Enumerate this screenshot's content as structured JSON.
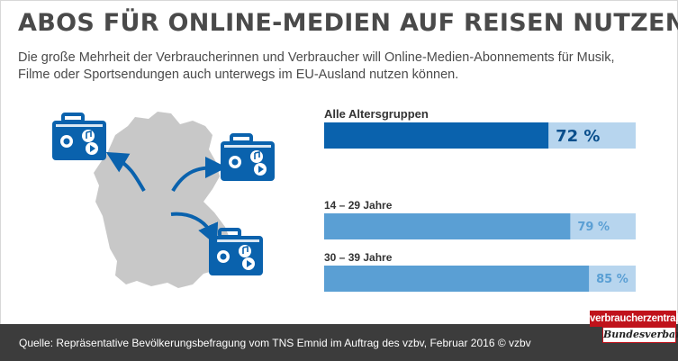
{
  "title": "ABOS FÜR ONLINE-MEDIEN AUF REISEN NUTZEN",
  "subtitle": "Die große Mehrheit der Verbraucherinnen und Verbraucher will Online-Medien-Abonnements für Musik, Filme oder Sportsendungen auch unterwegs im EU-Ausland nutzen können.",
  "source": "Quelle: Repräsentative Bevölkerungsbefragung vom TNS Emnid im Auftrag des vzbv, Februar 2016 © vzbv",
  "logo": {
    "top": "verbraucherzentrale",
    "bottom": "Bundesverband"
  },
  "colors": {
    "dark_blue": "#0a62ad",
    "mid_blue": "#5a9fd4",
    "light_blue": "#b7d5ee",
    "map_gray": "#c8c8c8",
    "footer": "#3c3c3c",
    "brand_red": "#c0121b"
  },
  "chart_data": {
    "type": "bar",
    "orientation": "horizontal",
    "categories": [
      "Alle Altersgruppen",
      "14 – 29 Jahre",
      "30 – 39 Jahre"
    ],
    "values": [
      72,
      79,
      85
    ],
    "value_labels": [
      "72 %",
      "79 %",
      "85 %"
    ],
    "unit": "%",
    "xlim": [
      0,
      100
    ],
    "grid": false
  },
  "illustration": {
    "map": "germany-map",
    "icons": [
      "suitcase-icon",
      "suitcase-icon",
      "suitcase-icon",
      "arrow-icon",
      "arrow-icon",
      "arrow-icon"
    ]
  }
}
